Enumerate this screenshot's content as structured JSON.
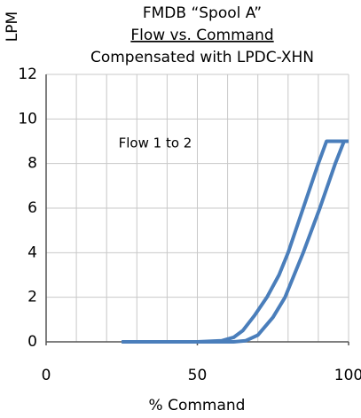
{
  "chart_data": {
    "type": "line",
    "title": [
      "FMDB “Spool A”",
      "Flow vs. Command",
      "Compensated with LPDC-XHN"
    ],
    "y_label": "LPM",
    "x_label": "% Command",
    "annotation": "Flow 1 to 2",
    "series": [
      {
        "color": "#4a7ebb",
        "x": [
          25,
          50,
          58,
          62,
          65,
          69,
          73,
          77,
          80,
          85,
          90,
          92.7,
          100
        ],
        "values": [
          0,
          0,
          0.05,
          0.2,
          0.5,
          1.2,
          2,
          3,
          4,
          6,
          8,
          9,
          9
        ]
      },
      {
        "color": "#4a7ebb",
        "x": [
          25,
          50,
          62,
          66,
          70,
          75,
          79,
          85,
          90.5,
          95.6,
          98.5,
          100
        ],
        "values": [
          0,
          0,
          0,
          0.05,
          0.3,
          1.1,
          2,
          4,
          6,
          8,
          9,
          9
        ]
      }
    ],
    "xlim": [
      0,
      100
    ],
    "xticks": [
      0,
      50,
      100
    ],
    "x_grid": [
      0,
      10,
      20,
      30,
      40,
      50,
      60,
      70,
      80,
      90,
      100
    ],
    "ylim": [
      0,
      12
    ],
    "yticks": [
      0,
      2,
      4,
      6,
      8,
      10,
      12
    ],
    "grid": true
  }
}
